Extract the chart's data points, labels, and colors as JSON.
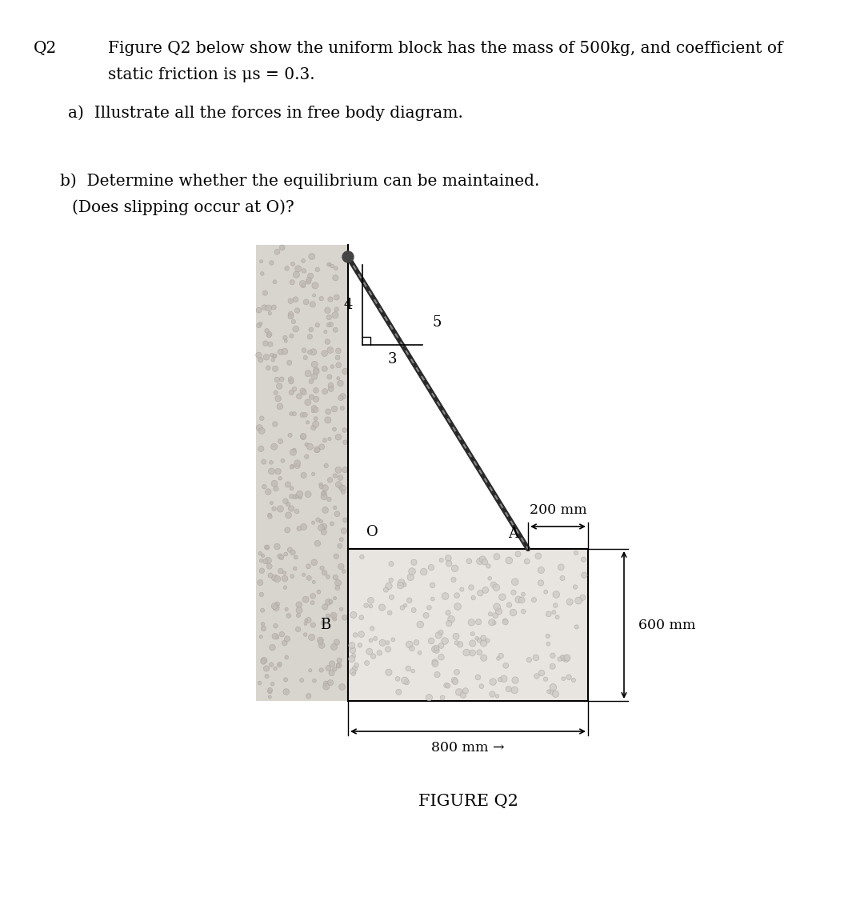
{
  "bg_color": "#ffffff",
  "wall_color": "#d8d4ce",
  "wall_dot_color": "#b8b0a8",
  "block_fill_color": "#e0dcd8",
  "block_edge_color": "#000000",
  "text_color": "#000000",
  "title_line1": "Figure Q2 below show the uniform block has the mass of 500kg, and coefficient of",
  "title_line2": "static friction is μs = 0.3.",
  "part_a": "a)  Illustrate all the forces in free body diagram.",
  "part_b_line1": "b)  Determine whether the equilibrium can be maintained.",
  "part_b_line2": "(Does slipping occur at O)?",
  "q2_label": "Q2",
  "figure_label": "FIGURE Q2",
  "label_O": "O",
  "label_A": "A",
  "label_B": "B",
  "dim_200": "200 mm",
  "dim_600": "600 mm",
  "dim_800": "800 mm →",
  "ratio_label_4": "4",
  "ratio_label_3": "3",
  "ratio_label_5": "5"
}
